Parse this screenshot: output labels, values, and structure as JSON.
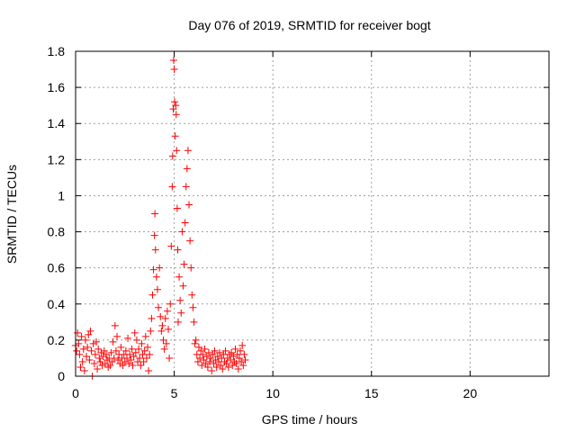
{
  "chart_data": {
    "type": "scatter",
    "title": "Day 076 of 2019, SRMTID for receiver bogt",
    "xlabel": "GPS time / hours",
    "ylabel": "SRMTID / TECUs",
    "xlim": [
      0,
      24
    ],
    "ylim": [
      0,
      1.8
    ],
    "xticks": [
      0,
      5,
      10,
      15,
      20
    ],
    "xtick_labels": [
      "0",
      "5",
      "10",
      "15",
      "20"
    ],
    "yticks": [
      0,
      0.2,
      0.4,
      0.6,
      0.8,
      1.0,
      1.2,
      1.4,
      1.6,
      1.8
    ],
    "ytick_labels": [
      "0",
      "0.2",
      "0.4",
      "0.6",
      "0.8",
      "1",
      "1.2",
      "1.4",
      "1.6",
      "1.8"
    ],
    "grid": true,
    "marker": "plus",
    "marker_color": "#ff0000",
    "series": [
      {
        "name": "SRMTID",
        "points": [
          [
            0.0,
            0.17
          ],
          [
            0.05,
            0.14
          ],
          [
            0.1,
            0.24
          ],
          [
            0.15,
            0.18
          ],
          [
            0.2,
            0.12
          ],
          [
            0.25,
            0.05
          ],
          [
            0.3,
            0.22
          ],
          [
            0.35,
            0.08
          ],
          [
            0.4,
            0.15
          ],
          [
            0.45,
            0.03
          ],
          [
            0.5,
            0.2
          ],
          [
            0.55,
            0.11
          ],
          [
            0.6,
            0.16
          ],
          [
            0.65,
            0.23
          ],
          [
            0.7,
            0.09
          ],
          [
            0.75,
            0.25
          ],
          [
            0.8,
            0.14
          ],
          [
            0.85,
            0.0
          ],
          [
            0.9,
            0.18
          ],
          [
            0.95,
            0.07
          ],
          [
            1.0,
            0.12
          ],
          [
            1.05,
            0.19
          ],
          [
            1.1,
            0.04
          ],
          [
            1.15,
            0.15
          ],
          [
            1.2,
            0.1
          ],
          [
            1.25,
            0.08
          ],
          [
            1.3,
            0.13
          ],
          [
            1.35,
            0.06
          ],
          [
            1.4,
            0.11
          ],
          [
            1.45,
            0.14
          ],
          [
            1.5,
            0.07
          ],
          [
            1.55,
            0.12
          ],
          [
            1.6,
            0.09
          ],
          [
            1.65,
            0.05
          ],
          [
            1.7,
            0.1
          ],
          [
            1.75,
            0.06
          ],
          [
            1.8,
            0.13
          ],
          [
            1.85,
            0.08
          ],
          [
            1.9,
            0.19
          ],
          [
            1.95,
            0.1
          ],
          [
            2.0,
            0.28
          ],
          [
            2.05,
            0.14
          ],
          [
            2.1,
            0.22
          ],
          [
            2.15,
            0.09
          ],
          [
            2.2,
            0.12
          ],
          [
            2.25,
            0.07
          ],
          [
            2.3,
            0.16
          ],
          [
            2.35,
            0.1
          ],
          [
            2.4,
            0.06
          ],
          [
            2.45,
            0.12
          ],
          [
            2.5,
            0.08
          ],
          [
            2.55,
            0.14
          ],
          [
            2.6,
            0.1
          ],
          [
            2.65,
            0.21
          ],
          [
            2.7,
            0.07
          ],
          [
            2.75,
            0.12
          ],
          [
            2.8,
            0.09
          ],
          [
            2.85,
            0.15
          ],
          [
            2.9,
            0.06
          ],
          [
            2.95,
            0.11
          ],
          [
            3.0,
            0.24
          ],
          [
            3.05,
            0.13
          ],
          [
            3.1,
            0.2
          ],
          [
            3.15,
            0.08
          ],
          [
            3.2,
            0.15
          ],
          [
            3.25,
            0.1
          ],
          [
            3.3,
            0.06
          ],
          [
            3.35,
            0.18
          ],
          [
            3.4,
            0.12
          ],
          [
            3.45,
            0.08
          ],
          [
            3.5,
            0.14
          ],
          [
            3.55,
            0.22
          ],
          [
            3.6,
            0.1
          ],
          [
            3.65,
            0.16
          ],
          [
            3.7,
            0.03
          ],
          [
            3.75,
            0.12
          ],
          [
            3.8,
            0.25
          ],
          [
            3.85,
            0.32
          ],
          [
            3.9,
            0.45
          ],
          [
            3.95,
            0.59
          ],
          [
            4.0,
            0.78
          ],
          [
            4.02,
            0.9
          ],
          [
            4.05,
            0.7
          ],
          [
            4.1,
            0.55
          ],
          [
            4.15,
            0.48
          ],
          [
            4.2,
            0.38
          ],
          [
            4.25,
            0.6
          ],
          [
            4.3,
            0.33
          ],
          [
            4.35,
            0.25
          ],
          [
            4.4,
            0.28
          ],
          [
            4.45,
            0.2
          ],
          [
            4.5,
            0.15
          ],
          [
            4.55,
            0.32
          ],
          [
            4.6,
            0.18
          ],
          [
            4.65,
            0.36
          ],
          [
            4.7,
            0.26
          ],
          [
            4.75,
            0.1
          ],
          [
            4.8,
            0.4
          ],
          [
            4.85,
            0.72
          ],
          [
            4.9,
            1.05
          ],
          [
            4.92,
            1.22
          ],
          [
            4.95,
            1.48
          ],
          [
            4.97,
            1.75
          ],
          [
            5.0,
            1.7
          ],
          [
            5.02,
            1.52
          ],
          [
            5.05,
            1.33
          ],
          [
            5.08,
            1.5
          ],
          [
            5.1,
            1.45
          ],
          [
            5.12,
            1.25
          ],
          [
            5.15,
            0.93
          ],
          [
            5.18,
            0.7
          ],
          [
            5.2,
            0.3
          ],
          [
            5.25,
            0.55
          ],
          [
            5.3,
            0.42
          ],
          [
            5.35,
            0.35
          ],
          [
            5.4,
            0.8
          ],
          [
            5.45,
            0.5
          ],
          [
            5.5,
            0.62
          ],
          [
            5.55,
            0.85
          ],
          [
            5.6,
            1.05
          ],
          [
            5.65,
            1.15
          ],
          [
            5.7,
            1.25
          ],
          [
            5.75,
            0.95
          ],
          [
            5.8,
            0.75
          ],
          [
            5.85,
            0.6
          ],
          [
            5.9,
            0.45
          ],
          [
            5.95,
            0.38
          ],
          [
            6.0,
            0.3
          ],
          [
            6.05,
            0.18
          ],
          [
            6.1,
            0.2
          ],
          [
            6.15,
            0.12
          ],
          [
            6.2,
            0.08
          ],
          [
            6.25,
            0.16
          ],
          [
            6.3,
            0.1
          ],
          [
            6.35,
            0.14
          ],
          [
            6.4,
            0.06
          ],
          [
            6.45,
            0.12
          ],
          [
            6.5,
            0.09
          ],
          [
            6.55,
            0.15
          ],
          [
            6.6,
            0.07
          ],
          [
            6.65,
            0.11
          ],
          [
            6.7,
            0.05
          ],
          [
            6.75,
            0.13
          ],
          [
            6.8,
            0.08
          ],
          [
            6.85,
            0.1
          ],
          [
            6.9,
            0.03
          ],
          [
            6.95,
            0.12
          ],
          [
            7.0,
            0.07
          ],
          [
            7.05,
            0.14
          ],
          [
            7.1,
            0.09
          ],
          [
            7.15,
            0.05
          ],
          [
            7.2,
            0.11
          ],
          [
            7.25,
            0.08
          ],
          [
            7.3,
            0.13
          ],
          [
            7.35,
            0.06
          ],
          [
            7.4,
            0.1
          ],
          [
            7.45,
            0.04
          ],
          [
            7.5,
            0.12
          ],
          [
            7.55,
            0.08
          ],
          [
            7.6,
            0.14
          ],
          [
            7.65,
            0.07
          ],
          [
            7.7,
            0.1
          ],
          [
            7.75,
            0.05
          ],
          [
            7.8,
            0.12
          ],
          [
            7.85,
            0.09
          ],
          [
            7.9,
            0.13
          ],
          [
            7.95,
            0.06
          ],
          [
            8.0,
            0.11
          ],
          [
            8.05,
            0.08
          ],
          [
            8.1,
            0.15
          ],
          [
            8.15,
            0.07
          ],
          [
            8.2,
            0.12
          ],
          [
            8.25,
            0.04
          ],
          [
            8.3,
            0.1
          ],
          [
            8.35,
            0.14
          ],
          [
            8.4,
            0.08
          ],
          [
            8.45,
            0.17
          ],
          [
            8.5,
            0.06
          ],
          [
            8.55,
            0.12
          ],
          [
            8.6,
            0.09
          ]
        ]
      }
    ]
  }
}
